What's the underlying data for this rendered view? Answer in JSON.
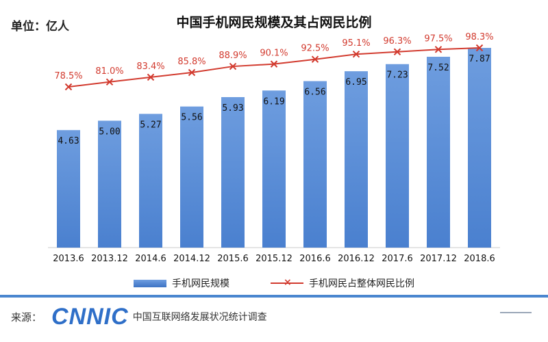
{
  "header": {
    "unit_label": "单位：亿人",
    "title": "中国手机网民规模及其占网民比例"
  },
  "legend": {
    "bar_label": "手机网民规模",
    "line_label": "手机网民占整体网民比例",
    "line_marker": "×"
  },
  "footer": {
    "source_label": "来源：",
    "logo_text": "CNNIC",
    "org_name": "中国互联网络发展状况统计调查"
  },
  "colors": {
    "bar": "#4a80cf",
    "line": "#d23a2e",
    "accent": "#4a86cf"
  },
  "chart_data": {
    "type": "bar",
    "title": "中国手机网民规模及其占网民比例",
    "xlabel": "",
    "ylabel": "单位：亿人",
    "ylim": [
      0,
      8.5
    ],
    "categories": [
      "2013.6",
      "2013.12",
      "2014.6",
      "2014.12",
      "2015.6",
      "2015.12",
      "2016.6",
      "2016.12",
      "2017.6",
      "2017.12",
      "2018.6"
    ],
    "series": [
      {
        "name": "手机网民规模",
        "type": "bar",
        "values": [
          4.63,
          5.0,
          5.27,
          5.56,
          5.93,
          6.19,
          6.56,
          6.95,
          7.23,
          7.52,
          7.87
        ],
        "labels": [
          "4.63",
          "5.00",
          "5.27",
          "5.56",
          "5.93",
          "6.19",
          "6.56",
          "6.95",
          "7.23",
          "7.52",
          "7.87"
        ]
      },
      {
        "name": "手机网民占整体网民比例",
        "type": "line",
        "values": [
          78.5,
          81.0,
          83.4,
          85.8,
          88.9,
          90.1,
          92.5,
          95.1,
          96.3,
          97.5,
          98.3
        ],
        "labels": [
          "78.5%",
          "81.0%",
          "83.4%",
          "85.8%",
          "88.9%",
          "90.1%",
          "92.5%",
          "95.1%",
          "96.3%",
          "97.5%",
          "98.3%"
        ]
      }
    ],
    "grid": false,
    "legend_position": "bottom"
  }
}
